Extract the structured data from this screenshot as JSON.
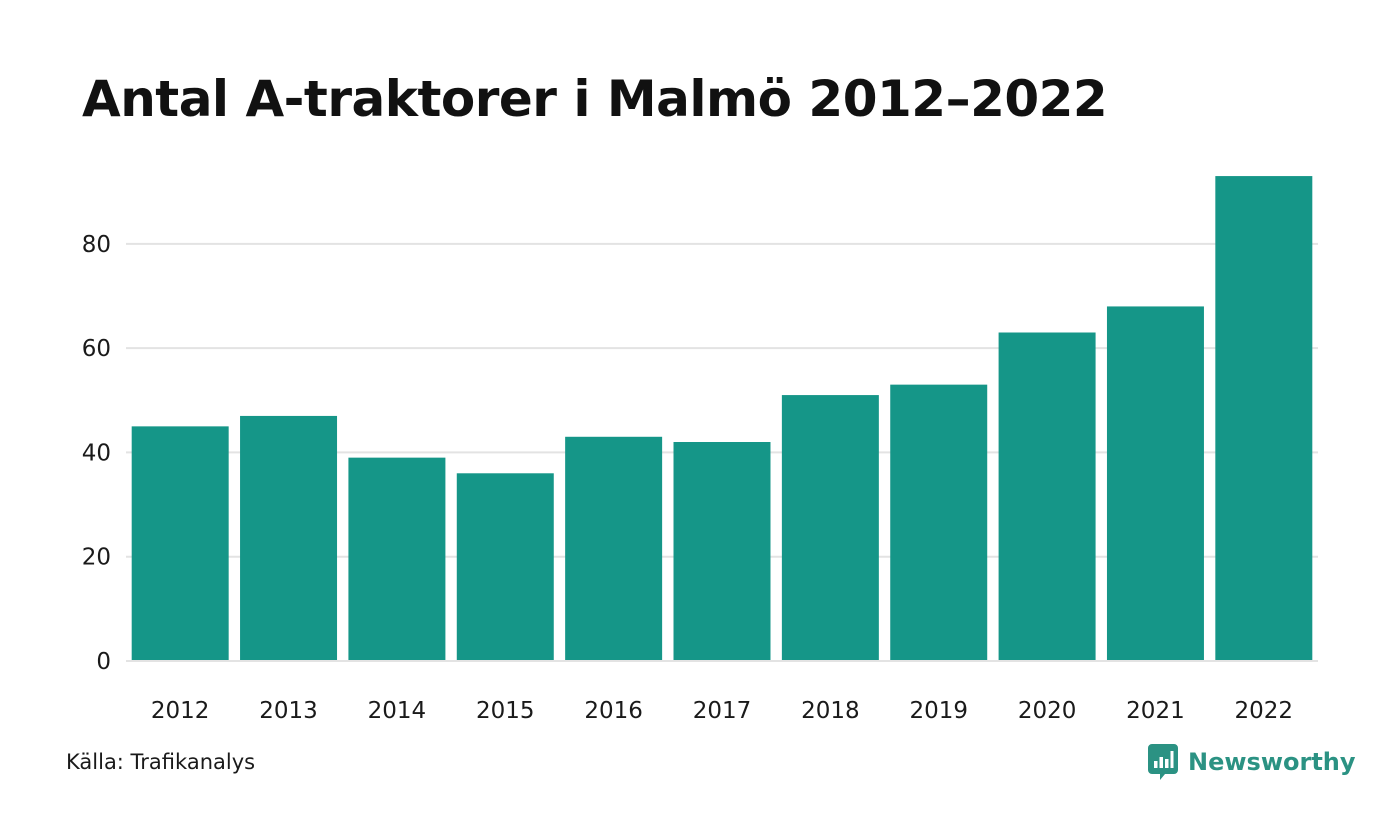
{
  "chart_data": {
    "type": "bar",
    "title": "Antal A-traktorer i Malmö 2012–2022",
    "categories": [
      "2012",
      "2013",
      "2014",
      "2015",
      "2016",
      "2017",
      "2018",
      "2019",
      "2020",
      "2021",
      "2022"
    ],
    "values": [
      45,
      47,
      39,
      36,
      43,
      42,
      51,
      53,
      63,
      68,
      93
    ],
    "ylim": [
      0,
      98
    ],
    "yticks": [
      0,
      20,
      40,
      60,
      80
    ],
    "xlabel": "",
    "ylabel": "",
    "grid": true,
    "legend": "none",
    "bar_color": "#159688"
  },
  "footer": {
    "source": "Källa: Trafikanalys",
    "brand": "Newsworthy",
    "brand_icon": "newsworthy-logo-icon",
    "brand_color": "#2b9283"
  }
}
